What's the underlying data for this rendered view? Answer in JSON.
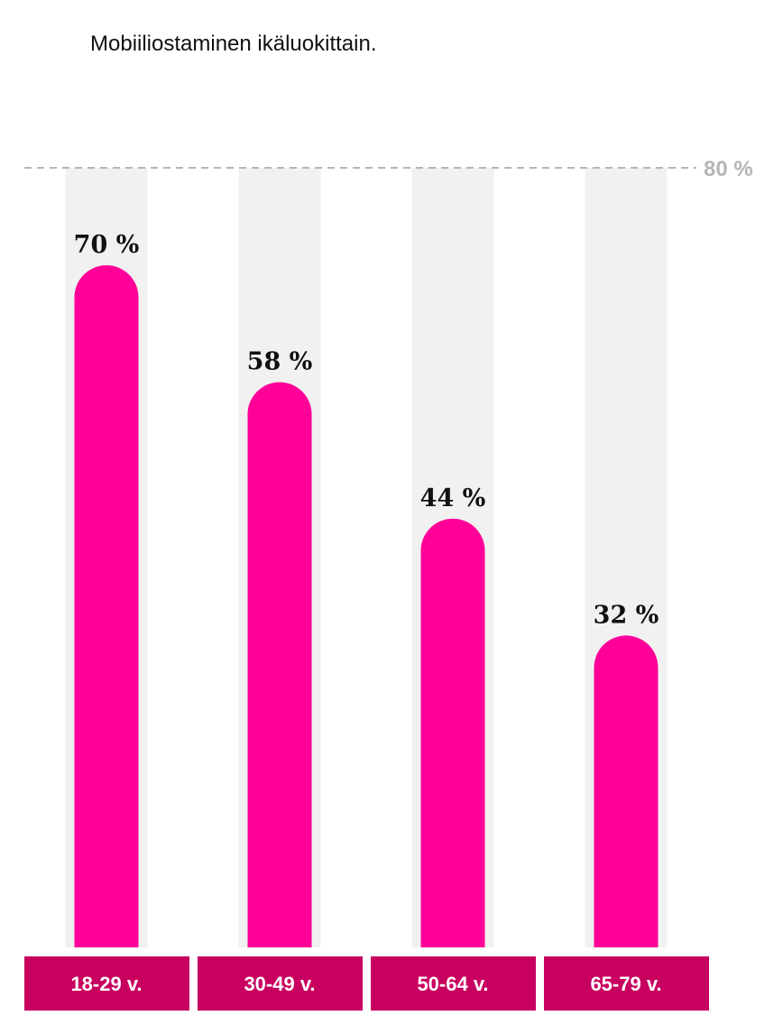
{
  "chart_data": {
    "type": "bar",
    "title": "Mobiiliostaminen ikäluokittain.",
    "categories": [
      "18-29 v.",
      "30-49 v.",
      "50-64 v.",
      "65-79 v."
    ],
    "values": [
      70,
      58,
      44,
      32
    ],
    "value_labels": [
      "70 %",
      "58 %",
      "44 %",
      "32 %"
    ],
    "color": "#ff0099",
    "ylim": [
      0,
      80
    ],
    "yticks": [
      {
        "value": 80,
        "label": "80 %"
      }
    ],
    "grid": true
  }
}
